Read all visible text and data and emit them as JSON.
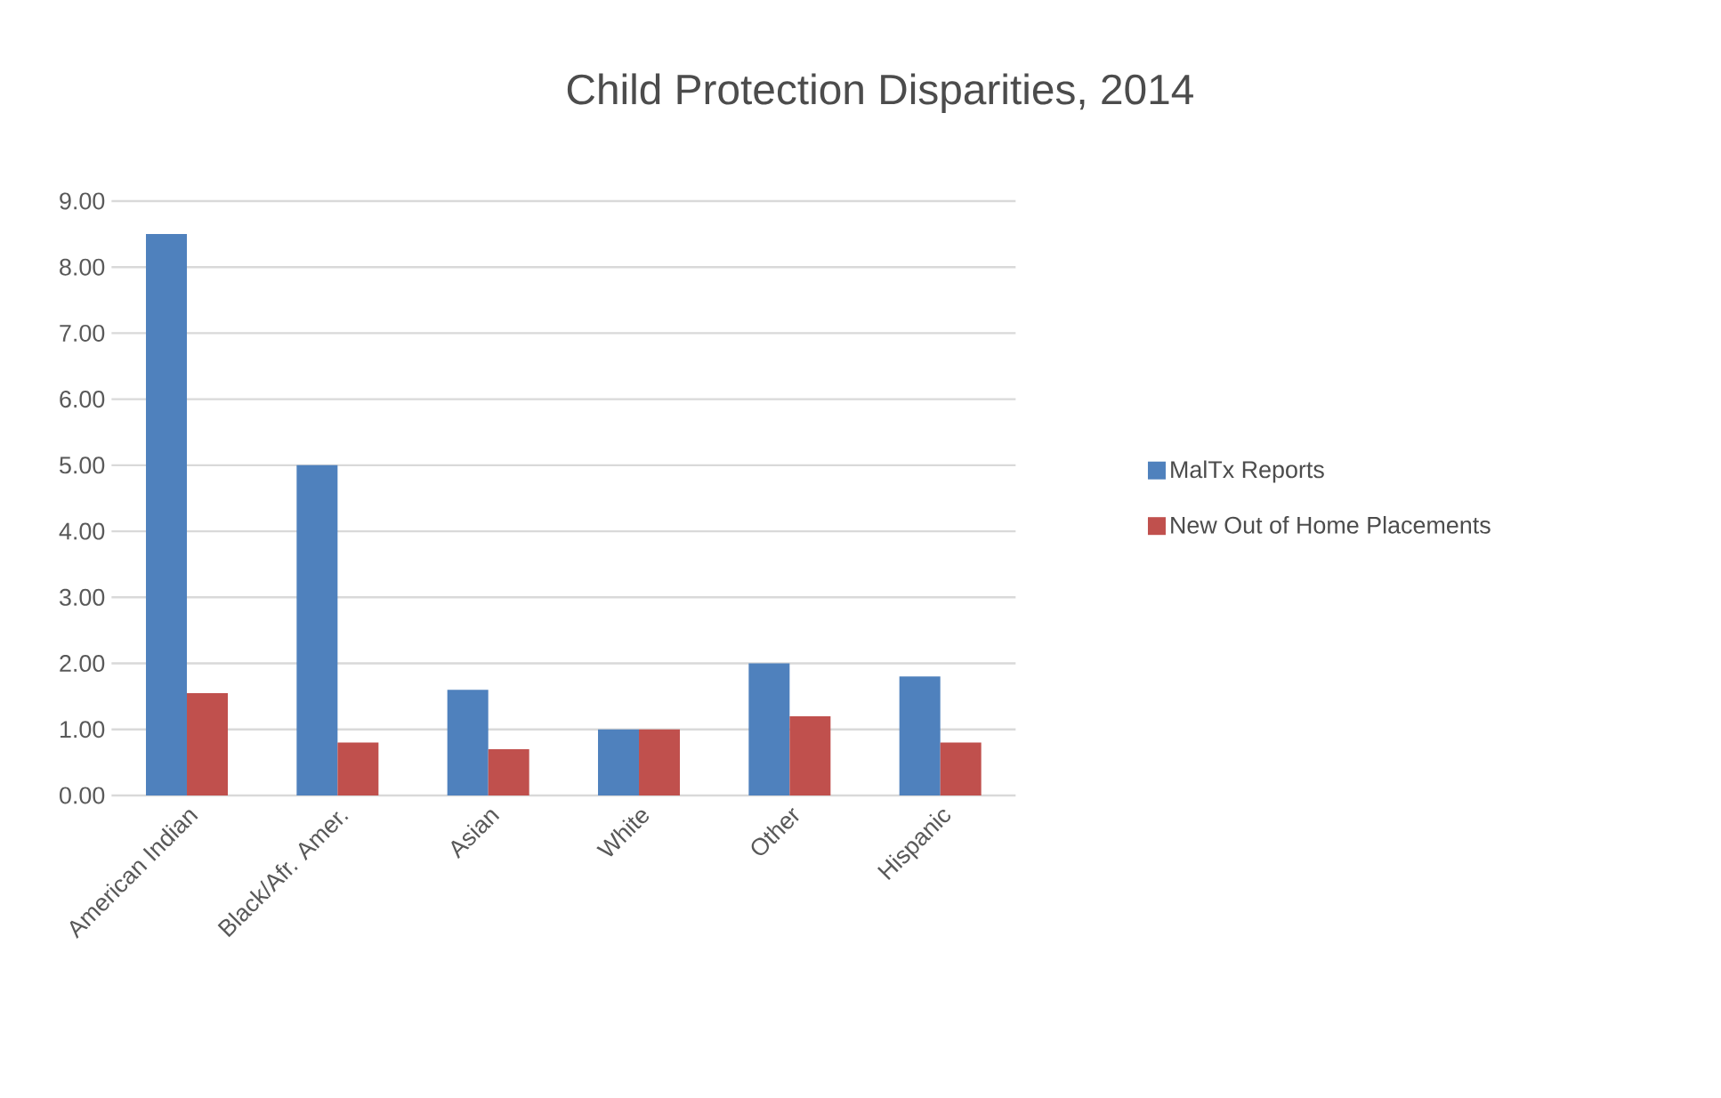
{
  "chart_data": {
    "type": "bar",
    "title": "Child Protection Disparities, 2014",
    "categories": [
      "American Indian",
      "Black/Afr. Amer.",
      "Asian",
      "White",
      "Other",
      "Hispanic"
    ],
    "series": [
      {
        "name": "MalTx Reports",
        "color": "#4f81bd",
        "values": [
          8.5,
          5.0,
          1.6,
          1.0,
          2.0,
          1.8
        ]
      },
      {
        "name": "New Out of Home Placements",
        "color": "#c0504d",
        "values": [
          1.55,
          0.8,
          0.7,
          1.0,
          1.2,
          0.8
        ]
      }
    ],
    "ylim": [
      0,
      9
    ],
    "yticks": [
      {
        "value": 0,
        "label": "0.00"
      },
      {
        "value": 1,
        "label": "1.00"
      },
      {
        "value": 2,
        "label": "2.00"
      },
      {
        "value": 3,
        "label": "3.00"
      },
      {
        "value": 4,
        "label": "4.00"
      },
      {
        "value": 5,
        "label": "5.00"
      },
      {
        "value": 6,
        "label": "6.00"
      },
      {
        "value": 7,
        "label": "7.00"
      },
      {
        "value": 8,
        "label": "8.00"
      },
      {
        "value": 9,
        "label": "9.00"
      }
    ],
    "grid": "y",
    "legend": "right"
  }
}
